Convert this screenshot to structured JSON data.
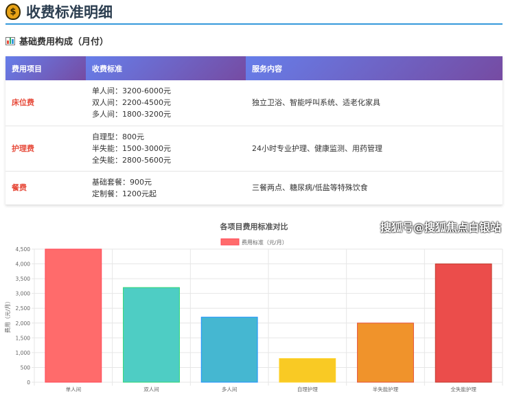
{
  "header": {
    "title": "收费标准明细",
    "icon": "money-bag-icon"
  },
  "section": {
    "title": "基础费用构成（月付）",
    "icon": "bar-chart-icon"
  },
  "table": {
    "columns": [
      "费用项目",
      "收费标准",
      "服务内容"
    ],
    "rows": [
      {
        "item": "床位费",
        "standards": [
          "单人间：3200-6000元",
          "双人间：2200-4500元",
          "多人间：1800-3200元"
        ],
        "service": "独立卫浴、智能呼叫系统、适老化家具"
      },
      {
        "item": "护理费",
        "standards": [
          "自理型：800元",
          "半失能：1500-3000元",
          "全失能：2800-5600元"
        ],
        "service": "24小时专业护理、健康监测、用药管理"
      },
      {
        "item": "餐费",
        "standards": [
          "基础套餐：900元",
          "定制餐：1200元起"
        ],
        "service": "三餐两点、糖尿病/低盐等特殊饮食"
      }
    ]
  },
  "chart_data": {
    "type": "bar",
    "title": "各项目费用标准对比",
    "ylabel": "费用（元/月）",
    "xlabel": "",
    "categories": [
      "单人间",
      "双人间",
      "多人间",
      "自理护理",
      "半失能护理",
      "全失能护理"
    ],
    "series": [
      {
        "name": "费用标准（元/月）",
        "values": [
          4500,
          3200,
          2200,
          800,
          2000,
          4000
        ]
      }
    ],
    "colors": [
      "#ff6b6b",
      "#4ecdc4",
      "#45b7d1",
      "#f9ca24",
      "#f0932b",
      "#eb4d4b"
    ],
    "borders": [
      "#ff4757",
      "#2ed573",
      "#1e90ff",
      "#ffd32a",
      "#e55039",
      "#c0392b"
    ],
    "ylim": [
      0,
      4500
    ],
    "yticks": [
      0,
      500,
      1000,
      1500,
      2000,
      2500,
      3000,
      3500,
      4000,
      4500
    ],
    "ytick_labels": [
      "0",
      "500",
      "1,000",
      "1,500",
      "2,000",
      "2,500",
      "3,000",
      "3,500",
      "4,000",
      "4,500"
    ],
    "grid": true,
    "legend": "top"
  },
  "watermark": "搜狐号@搜狐焦点白银站"
}
